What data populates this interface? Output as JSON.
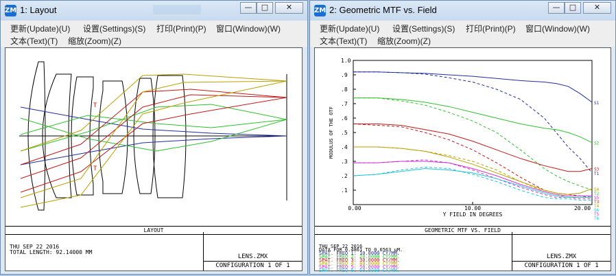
{
  "layout_window": {
    "title": "1: Layout",
    "menu": [
      "更新(Update)(U)",
      "设置(Settings)(S)",
      "打印(Print)(P)",
      "窗口(Window)(W)",
      "文本(Text)(T)",
      "缩放(Zoom)(Z)"
    ],
    "markers": [
      "T",
      "T"
    ],
    "caption": "LAYOUT",
    "info_lines": [
      "THU SEP 22 2016",
      "TOTAL LENGTH:   92.14000 MM"
    ],
    "file_name": "LENS.ZMX",
    "configuration": "CONFIGURATION 1 OF 1"
  },
  "mtf_window": {
    "title": "2: Geometric MTF vs. Field",
    "menu": [
      "更新(Update)(U)",
      "设置(Settings)(S)",
      "打印(Print)(P)",
      "窗口(Window)(W)",
      "文本(Text)(T)",
      "缩放(Zoom)(Z)"
    ],
    "caption": "GEOMETRIC MTF VS. FIELD",
    "info_lines": [
      "THU SEP 22 2016",
      "DATA FOR 0.4861 TO 0.6563 µM.",
      "SPAT. FREQ 1:  10.0000 CY/MM.",
      "SPAT. FREQ 2:  20.0000 CY/MM.",
      "SPAT. FREQ 3:  30.0000 CY/MM.",
      "SPAT. FREQ 4:  40.0000 CY/MM.",
      "SPAT. FREQ 5:  50.0000 CY/MM.",
      "SPAT. FREQ 6:  60.0000 CY/MM."
    ],
    "info_colors": [
      "#000000",
      "#000000",
      "#1f2e9e",
      "#2fbf2f",
      "#c01818",
      "#b8a000",
      "#d030d0",
      "#20c0d8"
    ],
    "file_name": "LENS.ZMX",
    "configuration": "CONFIGURATION 1 OF 1"
  },
  "window_buttons": {
    "minimize": "—",
    "maximize": "□",
    "close": "✕"
  },
  "chart_data": {
    "type": "line",
    "xlabel": "Y FIELD IN DEGREES",
    "ylabel": "MODULUS OF THE OTF",
    "xlim": [
      0,
      20
    ],
    "ylim": [
      0,
      1
    ],
    "x_ticks": [
      "0.00",
      "10.00",
      "20.00"
    ],
    "y_ticks": [
      ".1",
      ".2",
      ".3",
      ".4",
      ".5",
      ".6",
      ".7",
      ".8",
      ".9",
      "1.0"
    ],
    "x": [
      0,
      2,
      4,
      6,
      8,
      10,
      12,
      14,
      16,
      17,
      18,
      19,
      20
    ],
    "series": [
      {
        "name": "S1",
        "color": "#1f2e9e",
        "style": "solid",
        "values": [
          0.92,
          0.92,
          0.915,
          0.91,
          0.9,
          0.89,
          0.875,
          0.86,
          0.85,
          0.84,
          0.82,
          0.77,
          0.71
        ]
      },
      {
        "name": "T1",
        "color": "#1f2e9e",
        "style": "dashed",
        "values": [
          0.92,
          0.92,
          0.915,
          0.905,
          0.88,
          0.85,
          0.8,
          0.73,
          0.6,
          0.5,
          0.4,
          0.32,
          0.22
        ]
      },
      {
        "name": "S2",
        "color": "#2fbf2f",
        "style": "solid",
        "values": [
          0.74,
          0.74,
          0.73,
          0.71,
          0.68,
          0.64,
          0.6,
          0.56,
          0.53,
          0.52,
          0.5,
          0.47,
          0.43
        ]
      },
      {
        "name": "T2",
        "color": "#2fbf2f",
        "style": "dashed",
        "values": [
          0.74,
          0.74,
          0.72,
          0.69,
          0.64,
          0.58,
          0.5,
          0.38,
          0.25,
          0.2,
          0.16,
          0.13,
          0.1
        ]
      },
      {
        "name": "S3",
        "color": "#c01818",
        "style": "solid",
        "values": [
          0.56,
          0.56,
          0.55,
          0.52,
          0.49,
          0.44,
          0.38,
          0.32,
          0.27,
          0.25,
          0.23,
          0.23,
          0.25
        ]
      },
      {
        "name": "T3",
        "color": "#c01818",
        "style": "dashed",
        "values": [
          0.56,
          0.55,
          0.54,
          0.5,
          0.45,
          0.38,
          0.29,
          0.19,
          0.1,
          0.08,
          0.07,
          0.06,
          0.05
        ]
      },
      {
        "name": "S4",
        "color": "#b8a000",
        "style": "solid",
        "values": [
          0.4,
          0.4,
          0.39,
          0.37,
          0.33,
          0.28,
          0.22,
          0.16,
          0.1,
          0.08,
          0.07,
          0.08,
          0.11
        ]
      },
      {
        "name": "T4",
        "color": "#b8a000",
        "style": "dashed",
        "values": [
          0.4,
          0.4,
          0.39,
          0.37,
          0.34,
          0.3,
          0.24,
          0.16,
          0.09,
          0.07,
          0.05,
          0.05,
          0.05
        ]
      },
      {
        "name": "S5",
        "color": "#d030d0",
        "style": "solid",
        "values": [
          0.29,
          0.29,
          0.3,
          0.3,
          0.29,
          0.25,
          0.2,
          0.14,
          0.09,
          0.07,
          0.06,
          0.06,
          0.06
        ]
      },
      {
        "name": "T5",
        "color": "#d030d0",
        "style": "dashed",
        "values": [
          0.29,
          0.29,
          0.3,
          0.31,
          0.29,
          0.24,
          0.18,
          0.12,
          0.07,
          0.05,
          0.05,
          0.04,
          0.04
        ]
      },
      {
        "name": "S6",
        "color": "#20c0d8",
        "style": "solid",
        "values": [
          0.2,
          0.21,
          0.23,
          0.25,
          0.24,
          0.22,
          0.18,
          0.13,
          0.08,
          0.06,
          0.05,
          0.05,
          0.05
        ]
      },
      {
        "name": "T6",
        "color": "#20c0d8",
        "style": "dashed",
        "values": [
          0.2,
          0.21,
          0.24,
          0.26,
          0.25,
          0.21,
          0.16,
          0.1,
          0.05,
          0.04,
          0.04,
          0.03,
          0.03
        ]
      }
    ]
  }
}
